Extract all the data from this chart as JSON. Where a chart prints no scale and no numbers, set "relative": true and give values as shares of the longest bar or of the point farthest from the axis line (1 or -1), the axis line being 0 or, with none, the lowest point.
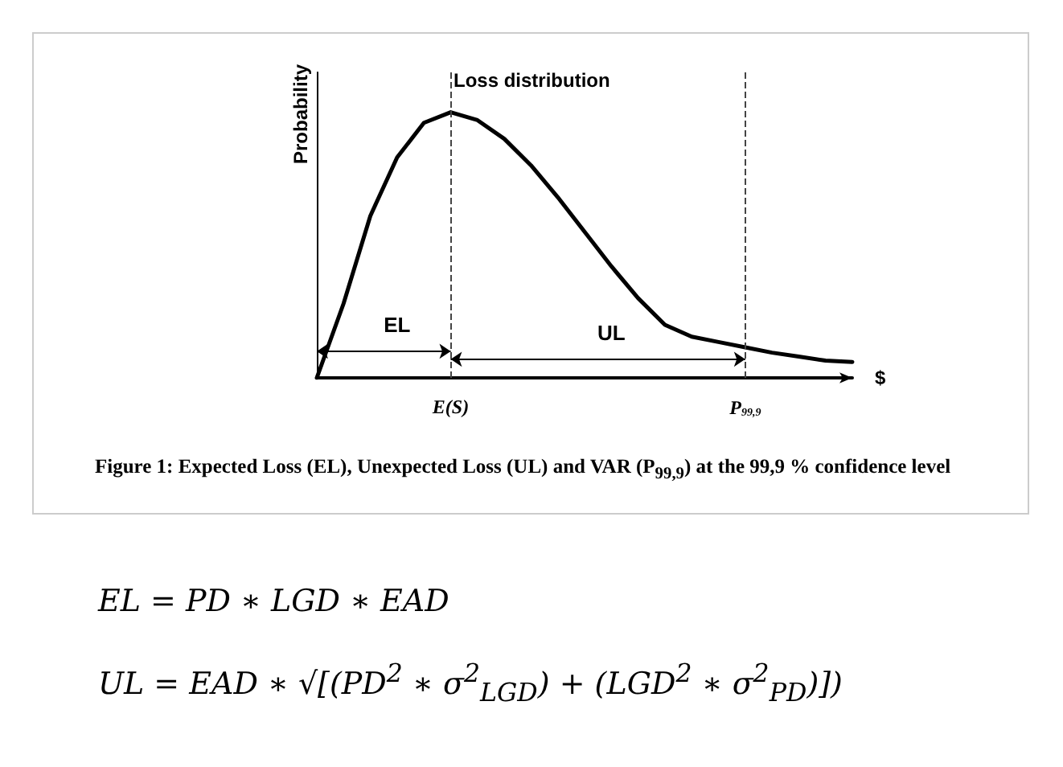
{
  "chart_data": {
    "type": "line",
    "title": "Loss distribution",
    "xlabel": "$",
    "ylabel": "Probability",
    "relative": true,
    "tick_labels": "x",
    "marker": "none",
    "line_style": "solid",
    "categories": [
      null,
      null,
      null,
      null,
      null,
      "E(S)",
      null,
      null,
      null,
      null,
      null,
      null,
      null,
      null,
      null,
      null,
      "P$_{99,9}$",
      null,
      null,
      null,
      null
    ],
    "series": [
      {
        "color": "#000000",
        "values": [
          0,
          0.28,
          0.61,
          0.83,
          0.96,
          1,
          0.97,
          0.9,
          0.8,
          0.68,
          0.55,
          0.42,
          0.3,
          0.2,
          0.155,
          0.135,
          0.115,
          0.095,
          0.08,
          0.065,
          0.06
        ]
      }
    ],
    "ref_lines": [
      {
        "axis": "x",
        "value": "E(S)",
        "line_style": "dashed"
      },
      {
        "axis": "x",
        "value": "P$_{99,9}$",
        "line_style": "dashed"
      }
    ],
    "annotations": [
      {
        "text": "EL"
      },
      {
        "text": "UL"
      },
      "Figure 1:  Expected Loss (EL), Unexpected Loss (UL) and VAR (P$_{99,9}$) at the 99,9 % confidence level",
      "EL = PD  ∗ LGD ∗ EAD",
      "UL = EAD  ∗ √[(PD$^{2}$ ∗ σ$^{2}$$_{LGD}$) + (LGD$^{2}$ ∗ σ$^{2}$$_{PD}$)])"
    ]
  }
}
